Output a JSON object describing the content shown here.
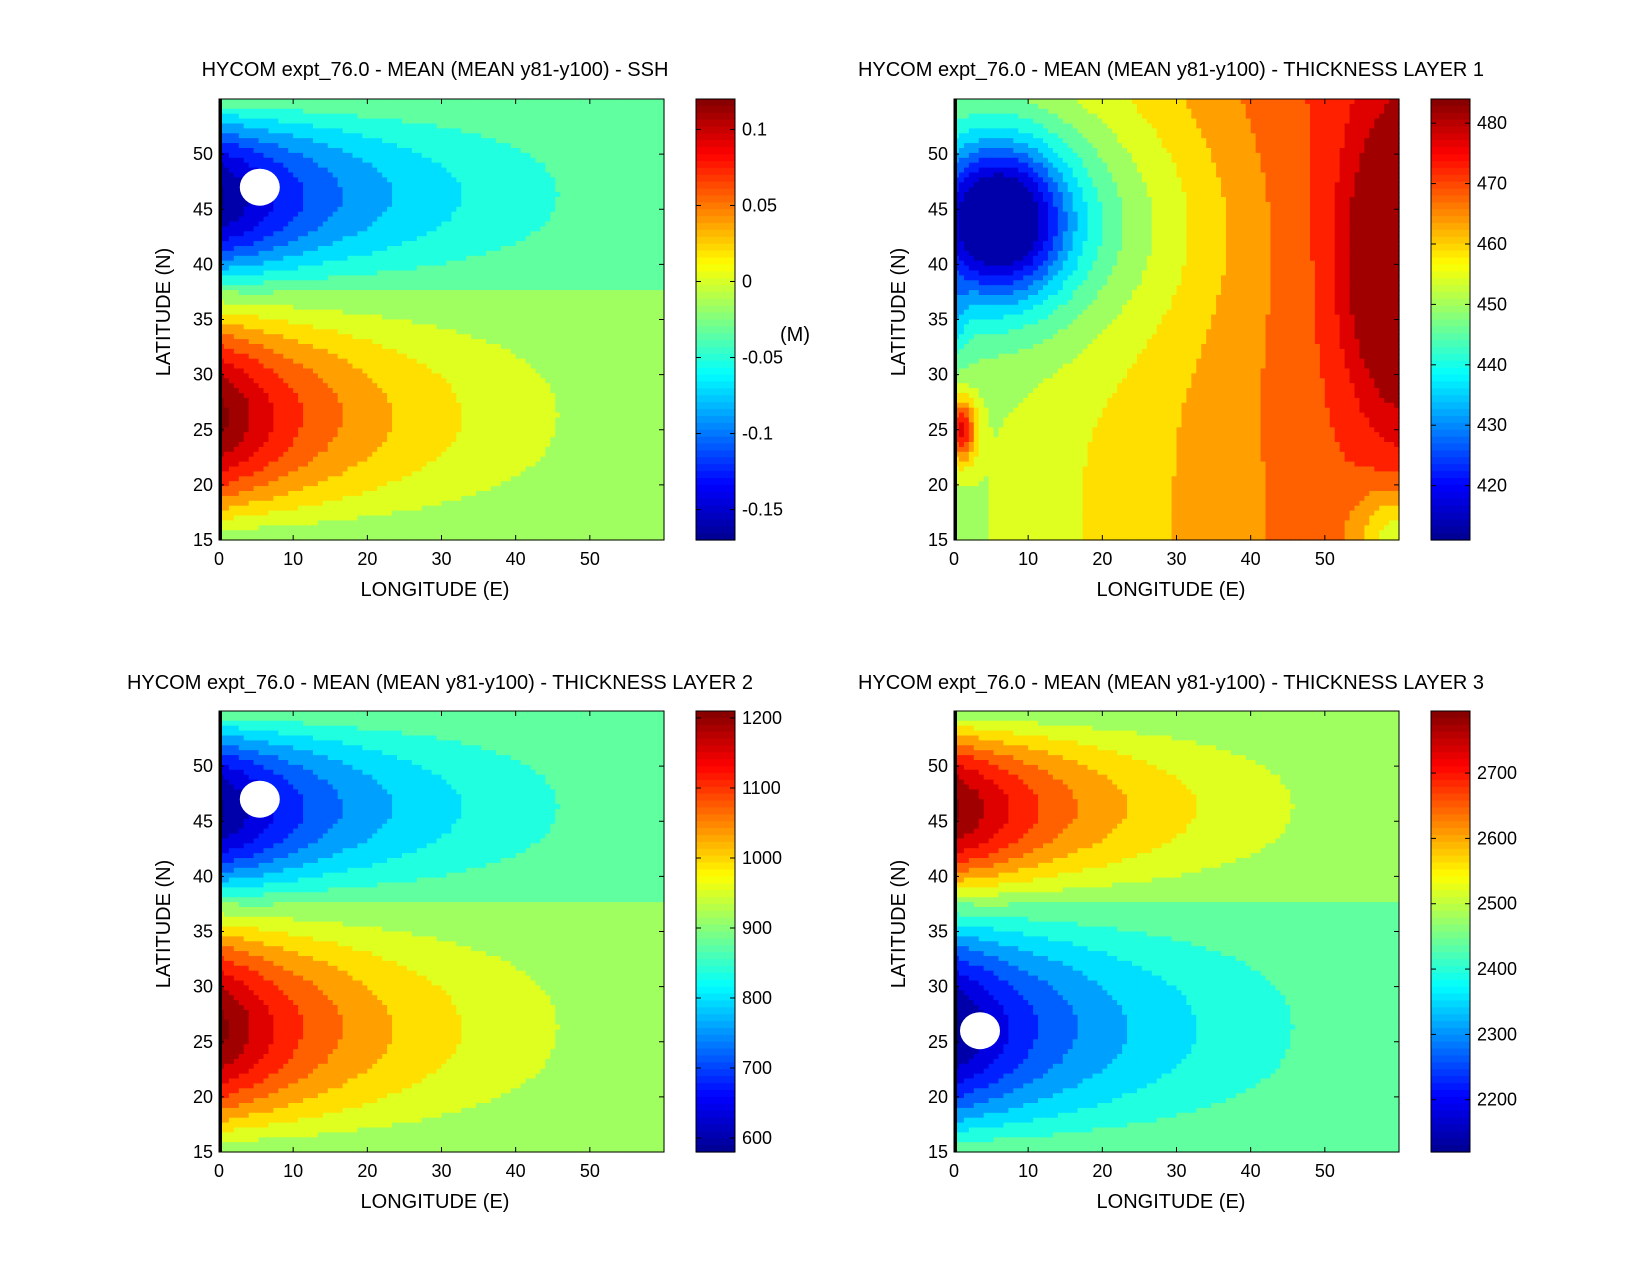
{
  "figure": {
    "colormap": [
      "#00008f",
      "#0000ff",
      "#0080ff",
      "#00ffff",
      "#80ff80",
      "#ffff00",
      "#ff8000",
      "#ff0000",
      "#800000"
    ]
  },
  "chart_data": [
    {
      "type": "heatmap",
      "title": "HYCOM expt_76.0 - MEAN (MEAN y81-y100) - SSH",
      "xlabel": "LONGITUDE (E)",
      "ylabel": "LATITUDE (N)",
      "xlim": [
        0,
        60
      ],
      "ylim": [
        15,
        55
      ],
      "xticks": [
        0,
        10,
        20,
        30,
        40,
        50
      ],
      "yticks": [
        15,
        20,
        25,
        30,
        35,
        40,
        45,
        50
      ],
      "colorbar": {
        "range": [
          -0.17,
          0.12
        ],
        "ticks": [
          0.1,
          0.05,
          0,
          -0.05,
          -0.1,
          -0.15
        ],
        "tick_labels": [
          "0.1",
          "0.05",
          "0",
          "-0.05",
          "-0.1",
          "-0.15"
        ],
        "unit_label": "(M)"
      },
      "field": {
        "pattern": "double-gyre",
        "north_gyre": {
          "center": [
            6,
            46
          ],
          "value_sign": "low"
        },
        "south_gyre": {
          "center": [
            3,
            26
          ],
          "value_sign": "high"
        },
        "land_mask_center": [
          5.5,
          47
        ]
      }
    },
    {
      "type": "heatmap",
      "title": "HYCOM expt_76.0 - MEAN (MEAN y81-y100) - THICKNESS LAYER 1",
      "xlabel": "LONGITUDE (E)",
      "ylabel": "LATITUDE (N)",
      "xlim": [
        0,
        60
      ],
      "ylim": [
        15,
        55
      ],
      "xticks": [
        0,
        10,
        20,
        30,
        40,
        50
      ],
      "yticks": [
        15,
        20,
        25,
        30,
        35,
        40,
        45,
        50
      ],
      "colorbar": {
        "range": [
          411,
          484
        ],
        "ticks": [
          480,
          470,
          460,
          450,
          440,
          430,
          420
        ],
        "tick_labels": [
          "480",
          "470",
          "460",
          "450",
          "440",
          "430",
          "420"
        ],
        "unit_label": ""
      },
      "field": {
        "pattern": "layer1",
        "low_center": [
          6,
          44
        ],
        "high_east": [
          60,
          40
        ],
        "high_west_spot": [
          1,
          25
        ]
      }
    },
    {
      "type": "heatmap",
      "title": "HYCOM expt_76.0 - MEAN (MEAN y81-y100) - THICKNESS LAYER 2",
      "xlabel": "LONGITUDE (E)",
      "ylabel": "LATITUDE (N)",
      "xlim": [
        0,
        60
      ],
      "ylim": [
        15,
        55
      ],
      "xticks": [
        0,
        10,
        20,
        30,
        40,
        50
      ],
      "yticks": [
        15,
        20,
        25,
        30,
        35,
        40,
        45,
        50
      ],
      "colorbar": {
        "range": [
          580,
          1210
        ],
        "ticks": [
          1200,
          1100,
          1000,
          900,
          800,
          700,
          600
        ],
        "tick_labels": [
          "1200",
          "1100",
          "1000",
          "900",
          "800",
          "700",
          "600"
        ],
        "unit_label": ""
      },
      "field": {
        "pattern": "double-gyre",
        "north_gyre": {
          "center": [
            6,
            46
          ],
          "value_sign": "low"
        },
        "south_gyre": {
          "center": [
            3,
            26
          ],
          "value_sign": "high"
        },
        "land_mask_center": [
          5.5,
          47
        ]
      }
    },
    {
      "type": "heatmap",
      "title": "HYCOM expt_76.0 - MEAN (MEAN y81-y100) - THICKNESS LAYER 3",
      "xlabel": "LONGITUDE (E)",
      "ylabel": "LATITUDE (N)",
      "xlim": [
        0,
        60
      ],
      "ylim": [
        15,
        55
      ],
      "xticks": [
        0,
        10,
        20,
        30,
        40,
        50
      ],
      "yticks": [
        15,
        20,
        25,
        30,
        35,
        40,
        45,
        50
      ],
      "colorbar": {
        "range": [
          2120,
          2795
        ],
        "ticks": [
          2700,
          2600,
          2500,
          2400,
          2300,
          2200
        ],
        "tick_labels": [
          "2700",
          "2600",
          "2500",
          "2400",
          "2300",
          "2200"
        ],
        "unit_label": ""
      },
      "field": {
        "pattern": "double-gyre",
        "north_gyre": {
          "center": [
            6,
            46
          ],
          "value_sign": "high"
        },
        "south_gyre": {
          "center": [
            3,
            26
          ],
          "value_sign": "low"
        },
        "land_mask_center": [
          3.5,
          26
        ]
      }
    }
  ]
}
